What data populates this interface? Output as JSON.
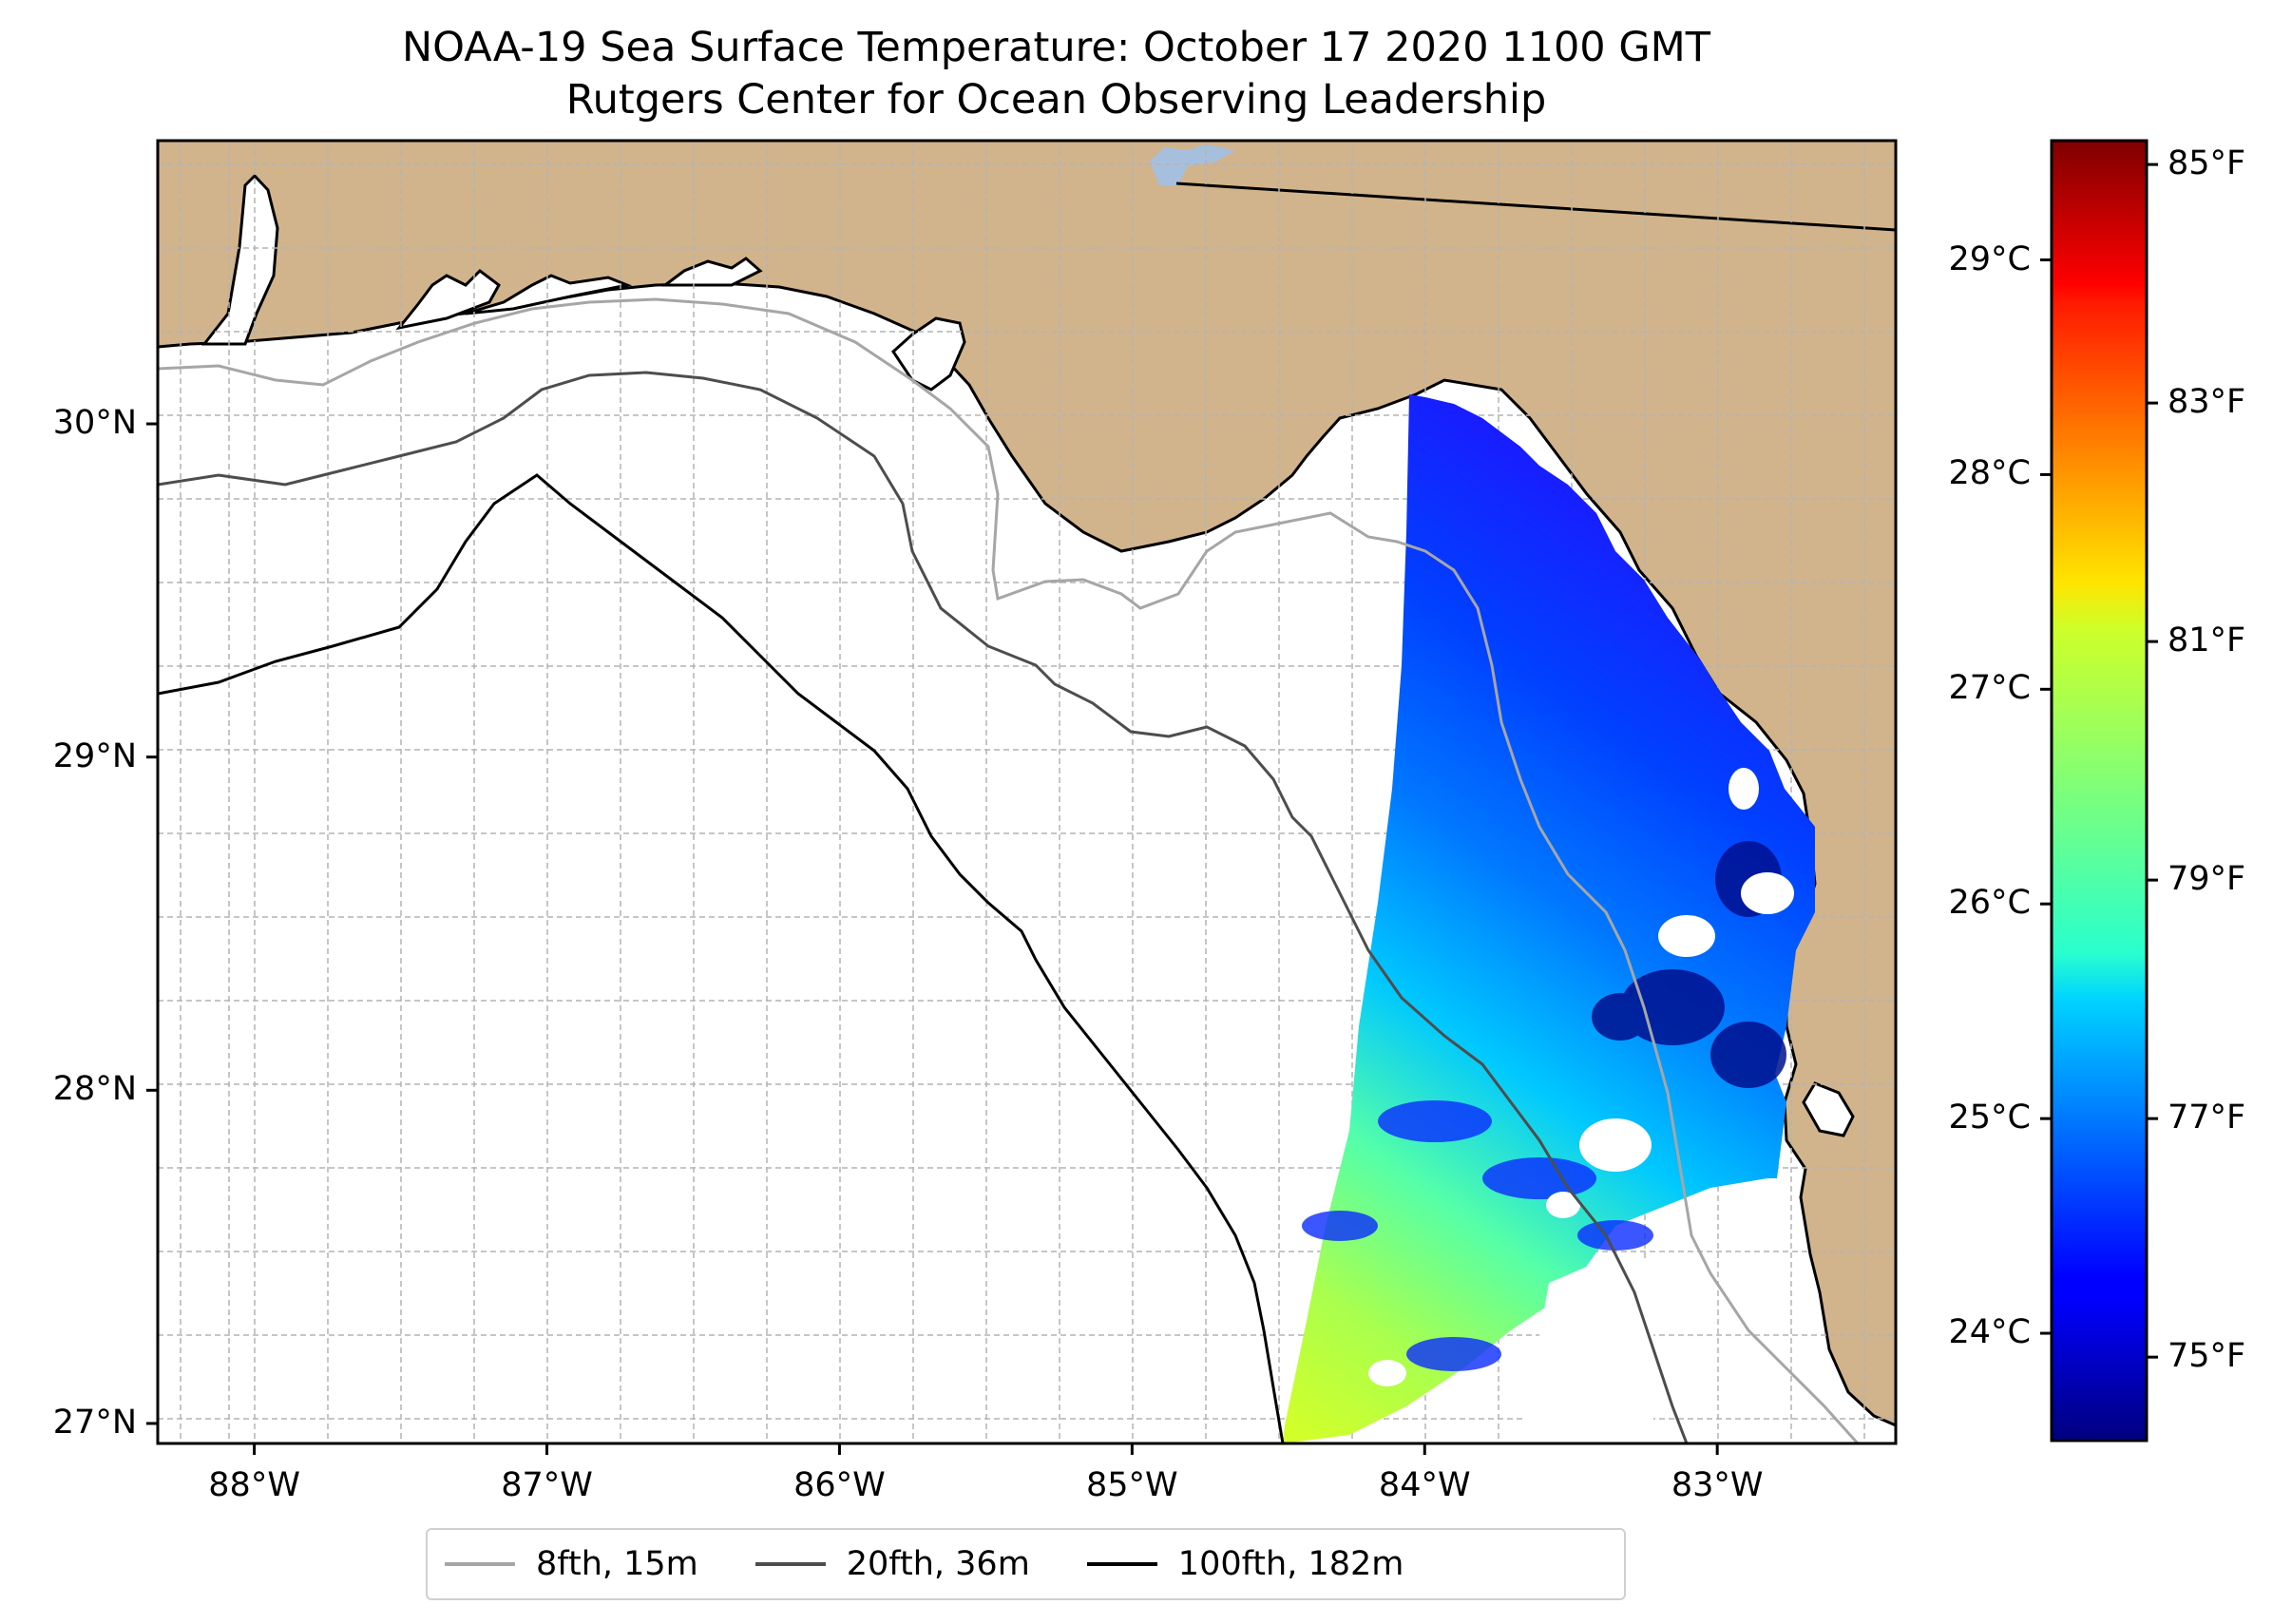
{
  "title": {
    "line1": "NOAA-19 Sea Surface Temperature: October 17 2020 1100 GMT",
    "line2": "Rutgers Center for Ocean Observing Leadership"
  },
  "map": {
    "lon_range": [
      -88.33,
      -82.39
    ],
    "lat_range": [
      26.94,
      30.85
    ],
    "lon_ticks": [
      {
        "value": -88,
        "label": "88°W"
      },
      {
        "value": -87,
        "label": "87°W"
      },
      {
        "value": -86,
        "label": "86°W"
      },
      {
        "value": -85,
        "label": "85°W"
      },
      {
        "value": -84,
        "label": "84°W"
      },
      {
        "value": -83,
        "label": "83°W"
      }
    ],
    "lat_ticks": [
      {
        "value": 27,
        "label": "27°N"
      },
      {
        "value": 28,
        "label": "28°N"
      },
      {
        "value": 29,
        "label": "29°N"
      },
      {
        "value": 30,
        "label": "30°N"
      }
    ],
    "land_color": "#d2b48c",
    "gridline_color": "#b3b3b3"
  },
  "colorbar": {
    "colormap": "jet",
    "celsius_ticks": [
      {
        "value": 24,
        "label": "24°C"
      },
      {
        "value": 25,
        "label": "25°C"
      },
      {
        "value": 26,
        "label": "26°C"
      },
      {
        "value": 27,
        "label": "27°C"
      },
      {
        "value": 28,
        "label": "28°C"
      },
      {
        "value": 29,
        "label": "29°C"
      }
    ],
    "fahrenheit_ticks": [
      {
        "value": 75,
        "label": "75°F"
      },
      {
        "value": 77,
        "label": "77°F"
      },
      {
        "value": 79,
        "label": "79°F"
      },
      {
        "value": 81,
        "label": "81°F"
      },
      {
        "value": 83,
        "label": "83°F"
      },
      {
        "value": 85,
        "label": "85°F"
      }
    ]
  },
  "legend": {
    "items": [
      {
        "label": "8fth, 15m",
        "color": "#a6a6a6"
      },
      {
        "label": "20fth, 36m",
        "color": "#4d4d4d"
      },
      {
        "label": "100fth, 182m",
        "color": "#000000"
      }
    ]
  }
}
